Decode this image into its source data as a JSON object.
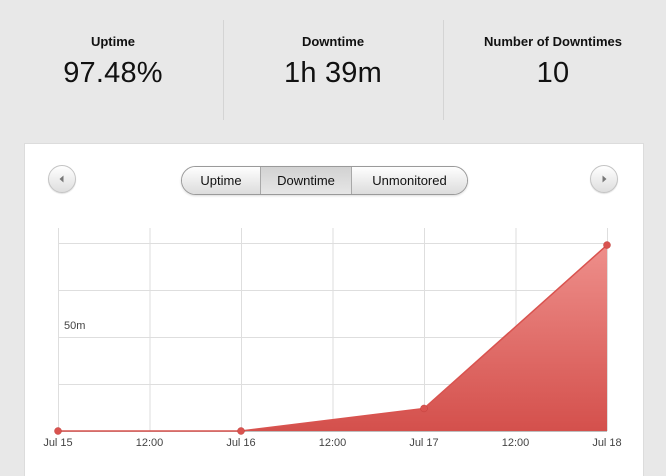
{
  "stats": [
    {
      "label": "Uptime",
      "value": "97.48%"
    },
    {
      "label": "Downtime",
      "value": "1h 39m"
    },
    {
      "label": "Number of Downtimes",
      "value": "10"
    }
  ],
  "segments": [
    {
      "label": "Uptime",
      "active": false
    },
    {
      "label": "Downtime",
      "active": true
    },
    {
      "label": "Unmonitored",
      "active": false
    }
  ],
  "nav": {
    "prev_icon": "chevron-left-icon",
    "next_icon": "chevron-right-icon"
  },
  "chart_data": {
    "type": "area",
    "title": "",
    "xlabel": "",
    "ylabel": "",
    "x_ticks": [
      "Jul 15",
      "12:00",
      "Jul 16",
      "12:00",
      "Jul 17",
      "12:00",
      "Jul 18"
    ],
    "y_ticks": [
      "50m"
    ],
    "ylim_minutes": [
      0,
      115
    ],
    "series": [
      {
        "color": "#d9534f",
        "points": [
          {
            "x": "Jul 15",
            "y_minutes": 0
          },
          {
            "x": "Jul 16",
            "y_minutes": 0
          },
          {
            "x": "Jul 17",
            "y_minutes": 12
          },
          {
            "x": "Jul 18",
            "y_minutes": 99
          }
        ]
      }
    ],
    "grid": true
  }
}
